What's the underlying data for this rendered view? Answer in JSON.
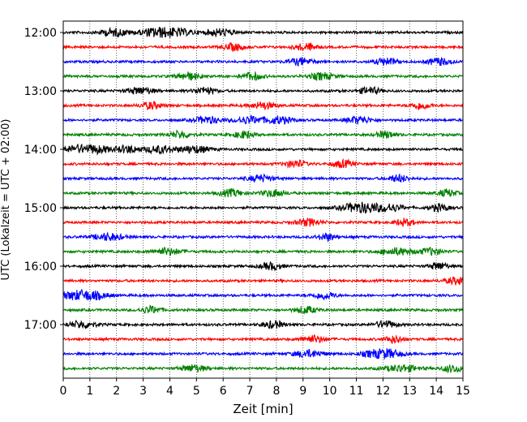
{
  "chart_data": {
    "type": "line",
    "title": "",
    "xlabel": "Zeit  [min]",
    "ylabel": "UTC (Lokalzeit = UTC + 02:00)",
    "xlim": [
      0,
      15
    ],
    "x_ticks": [
      "0",
      "1",
      "2",
      "3",
      "4",
      "5",
      "6",
      "7",
      "8",
      "9",
      "10",
      "11",
      "12",
      "13",
      "14",
      "15"
    ],
    "y_ticks": [
      {
        "label": "12:00",
        "trace": 0
      },
      {
        "label": "13:00",
        "trace": 4
      },
      {
        "label": "14:00",
        "trace": 8
      },
      {
        "label": "15:00",
        "trace": 12
      },
      {
        "label": "16:00",
        "trace": 16
      },
      {
        "label": "17:00",
        "trace": 20
      }
    ],
    "grid": "vertical-dotted",
    "trace_interval_min": 15,
    "trace_colors": [
      "#000000",
      "#ff0000",
      "#0000ff",
      "#008000"
    ],
    "traces": [
      {
        "start": "12:00",
        "bursts": [
          [
            1.9,
            0.55
          ],
          [
            3.4,
            0.6
          ],
          [
            4.2,
            0.7
          ],
          [
            5.9,
            0.5
          ]
        ]
      },
      {
        "start": "12:15",
        "bursts": [
          [
            6.4,
            0.4
          ],
          [
            9.1,
            0.4
          ]
        ]
      },
      {
        "start": "12:30",
        "bursts": [
          [
            8.9,
            0.45
          ],
          [
            12.1,
            0.4
          ],
          [
            14.1,
            0.45
          ]
        ]
      },
      {
        "start": "12:45",
        "bursts": [
          [
            4.7,
            0.45
          ],
          [
            7.1,
            0.4
          ],
          [
            9.7,
            0.45
          ]
        ]
      },
      {
        "start": "13:00",
        "bursts": [
          [
            2.9,
            0.5
          ],
          [
            5.3,
            0.4
          ],
          [
            11.5,
            0.4
          ]
        ]
      },
      {
        "start": "13:15",
        "bursts": [
          [
            3.3,
            0.4
          ],
          [
            7.5,
            0.45
          ],
          [
            13.4,
            0.35
          ]
        ]
      },
      {
        "start": "13:30",
        "bursts": [
          [
            5.4,
            0.5
          ],
          [
            7.0,
            0.55
          ],
          [
            8.1,
            0.5
          ],
          [
            11.1,
            0.45
          ]
        ]
      },
      {
        "start": "13:45",
        "bursts": [
          [
            4.4,
            0.4
          ],
          [
            6.8,
            0.4
          ],
          [
            12.1,
            0.35
          ]
        ]
      },
      {
        "start": "14:00",
        "bursts": [
          [
            0.5,
            0.55
          ],
          [
            1.3,
            0.5
          ],
          [
            2.4,
            0.45
          ],
          [
            3.6,
            0.55
          ],
          [
            4.9,
            0.6
          ]
        ]
      },
      {
        "start": "14:15",
        "bursts": [
          [
            8.7,
            0.4
          ],
          [
            10.5,
            0.4
          ]
        ]
      },
      {
        "start": "14:30",
        "bursts": [
          [
            7.4,
            0.45
          ],
          [
            12.6,
            0.35
          ]
        ]
      },
      {
        "start": "14:45",
        "bursts": [
          [
            6.3,
            0.45
          ],
          [
            7.9,
            0.45
          ],
          [
            14.4,
            0.35
          ]
        ]
      },
      {
        "start": "15:00",
        "bursts": [
          [
            10.9,
            0.55
          ],
          [
            11.5,
            0.5
          ],
          [
            12.3,
            0.45
          ],
          [
            14.1,
            0.35
          ]
        ]
      },
      {
        "start": "15:15",
        "bursts": [
          [
            9.2,
            0.45
          ],
          [
            12.8,
            0.35
          ]
        ]
      },
      {
        "start": "15:30",
        "bursts": [
          [
            1.7,
            0.55
          ],
          [
            9.9,
            0.35
          ]
        ]
      },
      {
        "start": "15:45",
        "bursts": [
          [
            3.9,
            0.5
          ],
          [
            12.5,
            0.6
          ],
          [
            13.8,
            0.4
          ]
        ]
      },
      {
        "start": "16:00",
        "bursts": [
          [
            7.8,
            0.4
          ],
          [
            14.1,
            0.35
          ]
        ]
      },
      {
        "start": "16:15",
        "bursts": [
          [
            14.8,
            0.45
          ]
        ]
      },
      {
        "start": "16:30",
        "bursts": [
          [
            0.4,
            0.55
          ],
          [
            1.1,
            0.6
          ],
          [
            9.8,
            0.4
          ]
        ]
      },
      {
        "start": "16:45",
        "bursts": [
          [
            3.3,
            0.4
          ],
          [
            9.1,
            0.4
          ]
        ]
      },
      {
        "start": "17:00",
        "bursts": [
          [
            0.7,
            0.5
          ],
          [
            7.9,
            0.4
          ],
          [
            12.1,
            0.4
          ]
        ]
      },
      {
        "start": "17:15",
        "bursts": [
          [
            9.4,
            0.45
          ],
          [
            12.4,
            0.35
          ]
        ]
      },
      {
        "start": "17:30",
        "bursts": [
          [
            9.2,
            0.55
          ],
          [
            11.7,
            0.5
          ],
          [
            12.3,
            0.45
          ]
        ]
      },
      {
        "start": "17:45",
        "bursts": [
          [
            4.9,
            0.45
          ],
          [
            12.7,
            0.6
          ],
          [
            14.6,
            0.4
          ]
        ]
      }
    ]
  }
}
